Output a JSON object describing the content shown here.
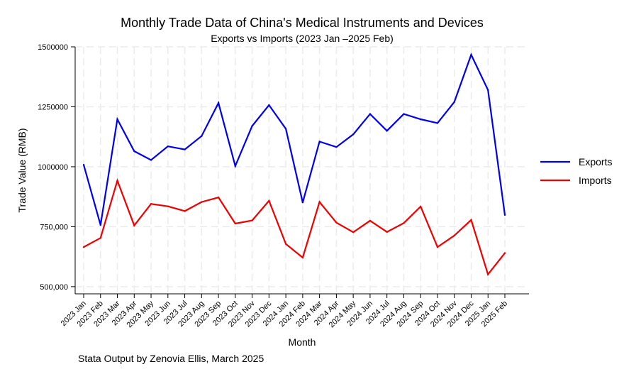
{
  "chart_data": {
    "type": "line",
    "title": "Monthly Trade Data of China's Medical Instruments and Devices",
    "subtitle": "Exports vs Imports (2023 Jan –2025 Feb)",
    "xlabel": "Month",
    "ylabel": "Trade Value (RMB)",
    "note": "Stata Output by Zenovia Ellis, March 2025",
    "ylim": [
      470000,
      1500000
    ],
    "yticks": [
      500000,
      750000,
      1000000,
      1250000,
      1500000
    ],
    "ytick_labels": [
      "500,000",
      "750,000",
      "1000000",
      "1250000",
      "1500000"
    ],
    "grid": true,
    "legend_position": "right",
    "categories": [
      "2023 Jan",
      "2023 Feb",
      "2023 Mar",
      "2023 Apr",
      "2023 May",
      "2023 Jun",
      "2023 Jul",
      "2023 Aug",
      "2023 Sep",
      "2023 Oct",
      "2023 Nov",
      "2023 Dec",
      "2024 Jan",
      "2024 Feb",
      "2024 Mar",
      "2024 Apr",
      "2024 May",
      "2024 Jun",
      "2024 Jul",
      "2024 Aug",
      "2024 Sep",
      "2024 Oct",
      "2024 Nov",
      "2024 Dec",
      "2025 Jan",
      "2025 Feb"
    ],
    "series": [
      {
        "name": "Exports",
        "color": "#0000ee",
        "values": [
          1008000,
          757000,
          1198000,
          1065000,
          1028000,
          1085000,
          1072000,
          1128000,
          1266000,
          1003000,
          1170000,
          1257000,
          1158000,
          851000,
          1105000,
          1082000,
          1135000,
          1220000,
          1150000,
          1220000,
          1198000,
          1182000,
          1270000,
          1467000,
          1320000,
          799000
        ]
      },
      {
        "name": "Imports",
        "color": "#ee0000",
        "values": [
          665000,
          703000,
          942000,
          755000,
          845000,
          835000,
          815000,
          853000,
          872000,
          763000,
          776000,
          858000,
          678000,
          621000,
          853000,
          767000,
          727000,
          775000,
          728000,
          765000,
          834000,
          665000,
          713000,
          778000,
          551000,
          640000
        ]
      }
    ]
  }
}
